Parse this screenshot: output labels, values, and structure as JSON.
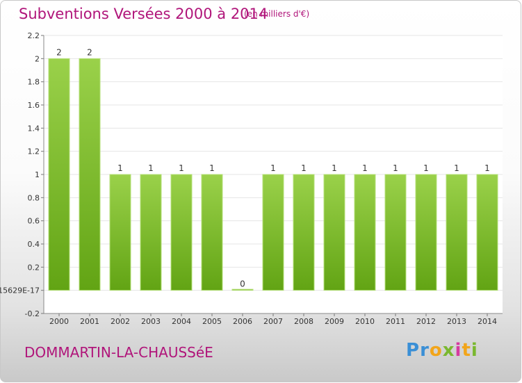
{
  "header": {
    "title": "Subventions Versées 2000 à 2014",
    "unit_note": "(en milliers d'€)"
  },
  "footer": {
    "commune": "DOMMARTIN-LA-CHAUSSéE",
    "logo_letters": [
      "P",
      "r",
      "o",
      "x",
      "i",
      "t",
      "i"
    ],
    "logo_colors": [
      "#3a8fd6",
      "#3a8fd6",
      "#f2a51a",
      "#7ab82f",
      "#d63aa0",
      "#f2a51a",
      "#7ab82f"
    ]
  },
  "chart_data": {
    "type": "bar",
    "title": "Subventions Versées 2000 à 2014",
    "subtitle": "(en milliers d'€)",
    "xlabel": "",
    "ylabel": "",
    "categories": [
      "2000",
      "2001",
      "2002",
      "2003",
      "2004",
      "2005",
      "2006",
      "2007",
      "2008",
      "2009",
      "2010",
      "2011",
      "2012",
      "2013",
      "2014"
    ],
    "values": [
      2,
      2,
      1,
      1,
      1,
      1,
      0,
      1,
      1,
      1,
      1,
      1,
      1,
      1,
      1
    ],
    "data_labels": [
      "2",
      "2",
      "1",
      "1",
      "1",
      "1",
      "0",
      "1",
      "1",
      "1",
      "1",
      "1",
      "1",
      "1",
      "1"
    ],
    "ylim": [
      -0.2,
      2.2
    ],
    "y_ticks": [
      -0.2,
      0,
      0.2,
      0.4,
      0.6,
      0.8,
      1,
      1.2,
      1.4,
      1.6,
      1.8,
      2,
      2.2
    ],
    "y_tick_labels": [
      "-0.2",
      "15629E-17",
      "0.2",
      "0.4",
      "0.6",
      "0.8",
      "1",
      "1.2",
      "1.4",
      "1.6",
      "1.8",
      "2",
      "2.2"
    ],
    "grid": true,
    "bar_color": "#7cbf2a",
    "bar_color_light": "#9ad14a"
  }
}
